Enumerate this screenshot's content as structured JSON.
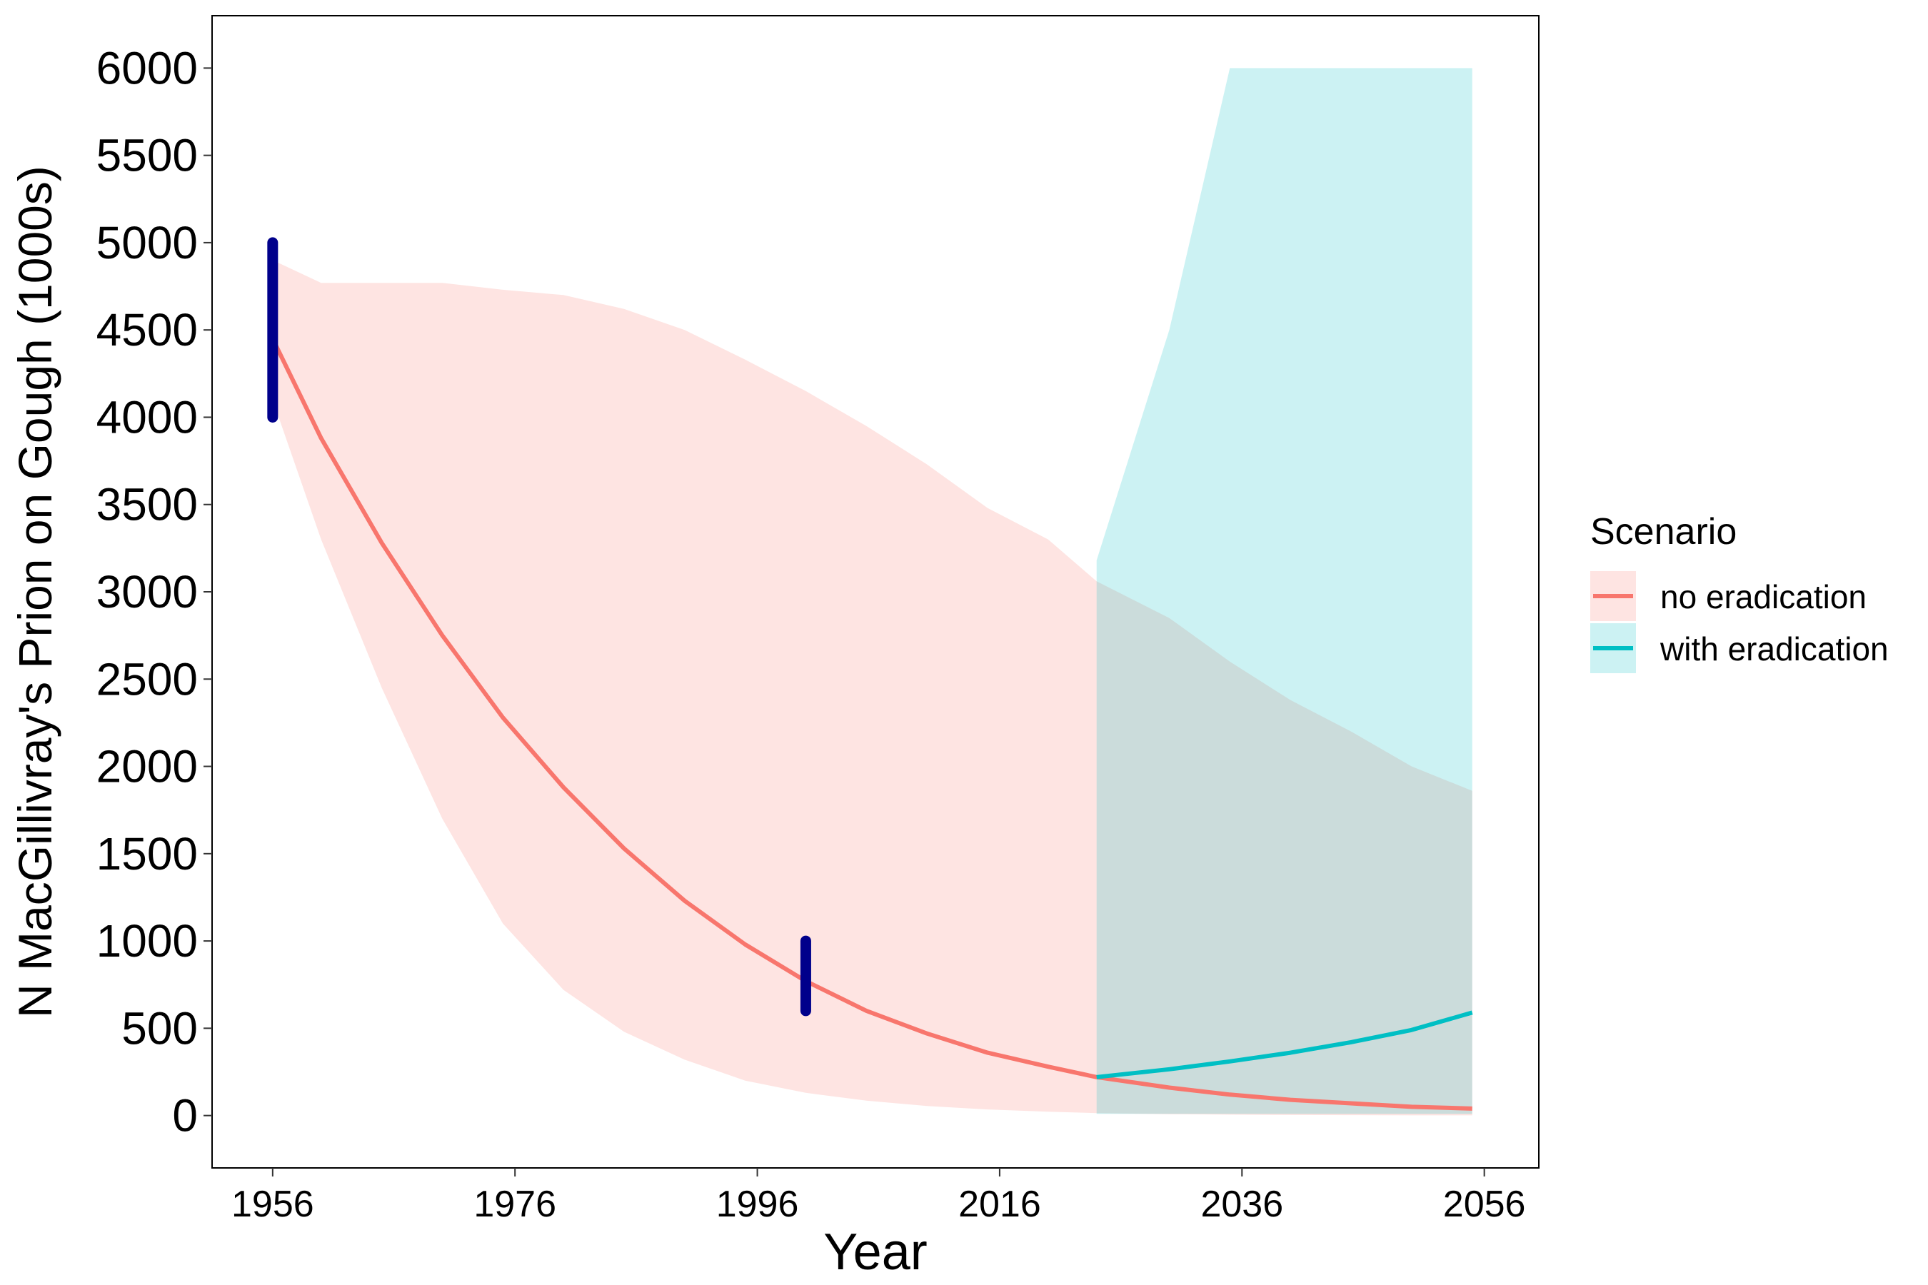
{
  "chart_data": {
    "type": "line",
    "xlabel": "Year",
    "ylabel": "N MacGillivray's Prion on Gough (1000s)",
    "xlim": [
      1951,
      2060.5
    ],
    "ylim": [
      -300,
      6300
    ],
    "x_ticks": [
      1956,
      1976,
      1996,
      2016,
      2036,
      2056
    ],
    "y_ticks": [
      0,
      500,
      1000,
      1500,
      2000,
      2500,
      3000,
      3500,
      4000,
      4500,
      5000,
      5500,
      6000
    ],
    "grid": false,
    "legend": {
      "title": "Scenario",
      "placement": "right",
      "entries": [
        "no eradication",
        "with eradication"
      ]
    },
    "series": [
      {
        "name": "no eradication",
        "color": "#F8766D",
        "ribbon_color": "#F8766D",
        "x": [
          1956,
          1960,
          1965,
          1970,
          1975,
          1980,
          1985,
          1990,
          1995,
          2000,
          2005,
          2010,
          2015,
          2020,
          2024,
          2030,
          2035,
          2040,
          2045,
          2050,
          2055
        ],
        "y": [
          4450,
          3880,
          3280,
          2750,
          2280,
          1880,
          1530,
          1230,
          980,
          770,
          600,
          470,
          360,
          280,
          220,
          160,
          120,
          90,
          70,
          50,
          40
        ],
        "lower": [
          4100,
          3300,
          2450,
          1700,
          1100,
          720,
          480,
          320,
          200,
          130,
          85,
          55,
          35,
          22,
          14,
          8,
          5,
          3,
          2,
          1,
          1
        ],
        "upper": [
          4900,
          4770,
          4770,
          4770,
          4730,
          4700,
          4620,
          4500,
          4330,
          4150,
          3950,
          3730,
          3480,
          3300,
          3060,
          2850,
          2600,
          2380,
          2200,
          2000,
          1860
        ]
      },
      {
        "name": "with eradication",
        "color": "#00BFC4",
        "ribbon_color": "#00BFC4",
        "x": [
          2024,
          2030,
          2035,
          2040,
          2045,
          2050,
          2055
        ],
        "y": [
          220,
          265,
          310,
          360,
          420,
          490,
          590
        ],
        "lower": [
          10,
          10,
          10,
          10,
          10,
          10,
          10
        ],
        "upper": [
          3180,
          4500,
          6000,
          6000,
          6000,
          6000,
          6000
        ]
      }
    ],
    "observations": [
      {
        "x": 1956,
        "low": 4000,
        "high": 5000,
        "color": "#00008B"
      },
      {
        "x": 2000,
        "low": 600,
        "high": 1000,
        "color": "#00008B"
      }
    ]
  }
}
